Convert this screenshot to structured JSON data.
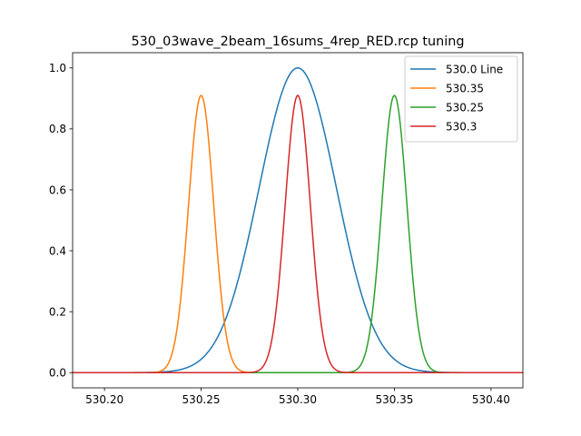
{
  "chart_data": {
    "type": "line",
    "title": "530_03wave_2beam_16sums_4rep_RED.rcp tuning",
    "xlabel": "",
    "ylabel": "",
    "xlim": [
      530.1835,
      530.4165
    ],
    "ylim": [
      -0.05,
      1.05
    ],
    "x_range": [
      530.1835,
      530.4165
    ],
    "xticks": [
      "530.20",
      "530.25",
      "530.30",
      "530.35",
      "530.40"
    ],
    "xtick_values": [
      530.2,
      530.25,
      530.3,
      530.35,
      530.4
    ],
    "yticks": [
      "0.0",
      "0.2",
      "0.4",
      "0.6",
      "0.8",
      "1.0"
    ],
    "ytick_values": [
      0.0,
      0.2,
      0.4,
      0.6,
      0.8,
      1.0
    ],
    "grid": false,
    "legend_position": "top-right",
    "series": [
      {
        "name": "530.0 Line",
        "shape": "gaussian",
        "center": 530.3,
        "peak": 1.0,
        "sigma": 0.02,
        "color": "#1f77b4"
      },
      {
        "name": "530.35",
        "shape": "gaussian",
        "center": 530.25,
        "peak": 0.91,
        "sigma": 0.0065,
        "color": "#ff7f0e"
      },
      {
        "name": "530.25",
        "shape": "gaussian",
        "center": 530.35,
        "peak": 0.91,
        "sigma": 0.0065,
        "color": "#2ca02c"
      },
      {
        "name": "530.3",
        "shape": "gaussian",
        "center": 530.3,
        "peak": 0.91,
        "sigma": 0.0065,
        "color": "#d62728"
      }
    ]
  }
}
